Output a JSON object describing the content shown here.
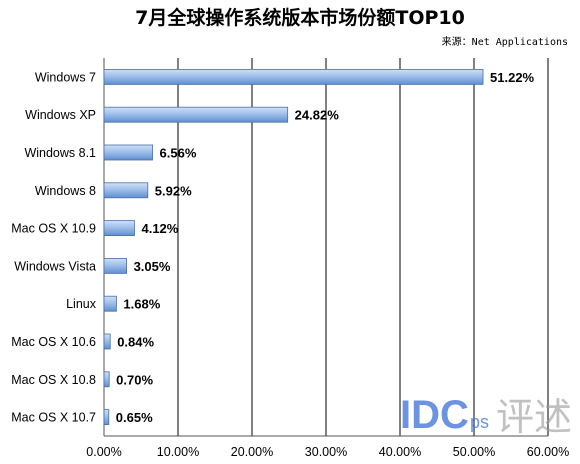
{
  "chart_data": {
    "type": "bar",
    "orientation": "horizontal",
    "title": "7月全球操作系统版本市场份额TOP10",
    "source": "来源：Net Applications",
    "categories": [
      "Windows 7",
      "Windows XP",
      "Windows 8.1",
      "Windows 8",
      "Mac OS X 10.9",
      "Windows Vista",
      "Linux",
      "Mac OS X 10.6",
      "Mac OS X 10.8",
      "Mac OS X 10.7"
    ],
    "values": [
      51.22,
      24.82,
      6.56,
      5.92,
      4.12,
      3.05,
      1.68,
      0.84,
      0.7,
      0.65
    ],
    "value_labels": [
      "51.22%",
      "24.82%",
      "6.56%",
      "5.92%",
      "4.12%",
      "3.05%",
      "1.68%",
      "0.84%",
      "0.70%",
      "0.65%"
    ],
    "xlim": [
      0,
      60
    ],
    "xticks": [
      0,
      10,
      20,
      30,
      40,
      50,
      60
    ],
    "xtick_labels": [
      "0.00%",
      "10.00%",
      "20.00%",
      "30.00%",
      "40.00%",
      "50.00%",
      "60.00%"
    ],
    "grid": true,
    "bar_color": "#8fb4e3",
    "bar_edge_color": "#4a6fa5"
  },
  "watermark": {
    "text": "IDC",
    "sub": "ps",
    "mark": "评述",
    "color": "#3a6fd8"
  }
}
